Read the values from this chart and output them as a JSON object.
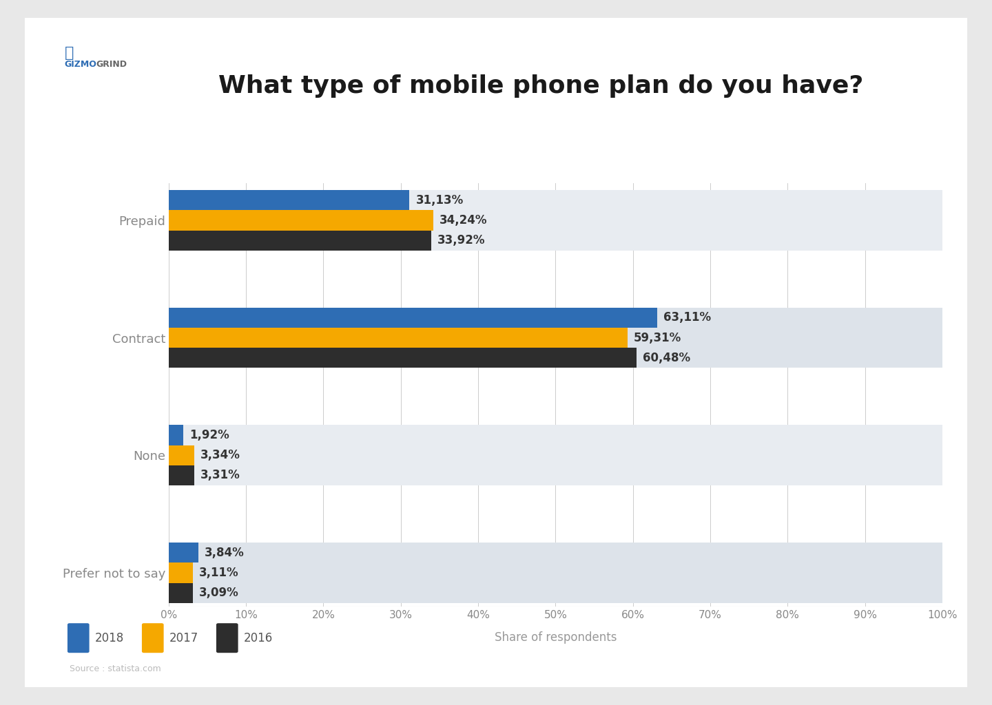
{
  "title": "What type of mobile phone plan do you have?",
  "categories": [
    "Prepaid",
    "Contract",
    "None",
    "Prefer not to say"
  ],
  "years": [
    "2018",
    "2017",
    "2016"
  ],
  "colors": [
    "#2e6db4",
    "#f5a800",
    "#2d2d2d"
  ],
  "values": {
    "Prepaid": [
      31.13,
      34.24,
      33.92
    ],
    "Contract": [
      63.11,
      59.31,
      60.48
    ],
    "None": [
      1.92,
      3.34,
      3.31
    ],
    "Prefer not to say": [
      3.84,
      3.11,
      3.09
    ]
  },
  "labels": {
    "Prepaid": [
      "31,13%",
      "34,24%",
      "33,92%"
    ],
    "Contract": [
      "63,11%",
      "59,31%",
      "60,48%"
    ],
    "None": [
      "1,92%",
      "3,34%",
      "3,31%"
    ],
    "Prefer not to say": [
      "3,84%",
      "3,11%",
      "3,09%"
    ]
  },
  "xlabel": "Share of respondents",
  "xlim": [
    0,
    100
  ],
  "xticks": [
    0,
    10,
    20,
    30,
    40,
    50,
    60,
    70,
    80,
    90,
    100
  ],
  "xtick_labels": [
    "0%",
    "10%",
    "20%",
    "30%",
    "40%",
    "50%",
    "60%",
    "70%",
    "80%",
    "90%",
    "100%"
  ],
  "bg_color": "#ffffff",
  "bar_bg_colors": [
    "#dde3ea",
    "#e8ecf1"
  ],
  "source": "Source : statista.com",
  "bar_height": 0.6,
  "bar_spacing": 0.0,
  "group_padding": 0.8,
  "title_fontsize": 26,
  "label_fontsize": 12,
  "tick_fontsize": 11,
  "legend_fontsize": 12,
  "source_fontsize": 9,
  "ylabel_fontsize": 13
}
